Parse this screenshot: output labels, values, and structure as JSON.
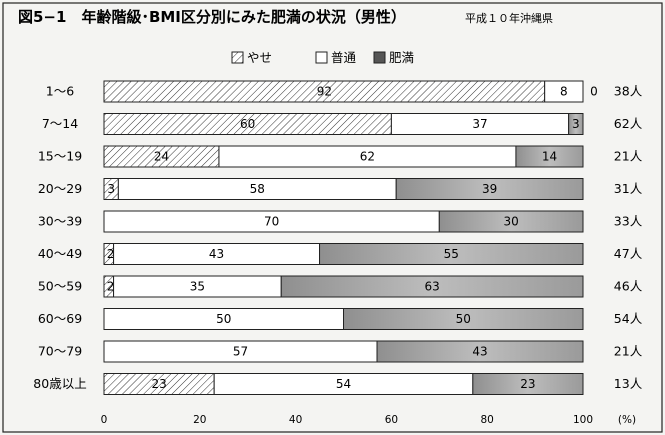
{
  "chart_data": {
    "type": "bar",
    "orientation": "horizontal",
    "stacked": true,
    "title": "図5−1　年齢階級･BMI区分別にみた肥満の状況（男性）",
    "subtitle": "平成１０年沖縄県",
    "categories": [
      "1～6",
      "7～14",
      "15～19",
      "20～29",
      "30～39",
      "40～49",
      "50～59",
      "60～69",
      "70～79",
      "80歳以上"
    ],
    "series": [
      {
        "name": "やせ",
        "values": [
          92,
          60,
          24,
          3,
          0,
          2,
          2,
          0,
          0,
          23
        ]
      },
      {
        "name": "普通",
        "values": [
          8,
          37,
          62,
          58,
          70,
          43,
          35,
          50,
          57,
          54
        ]
      },
      {
        "name": "肥満",
        "values": [
          0,
          3,
          14,
          39,
          30,
          55,
          63,
          50,
          43,
          23
        ]
      }
    ],
    "totals": [
      "38人",
      "62人",
      "21人",
      "31人",
      "33人",
      "47人",
      "46人",
      "54人",
      "21人",
      "13人"
    ],
    "x_ticks": [
      "0",
      "20",
      "40",
      "60",
      "80",
      "100"
    ],
    "x_unit": "(%)",
    "xlim": [
      0,
      100
    ],
    "legend_position": "top-center",
    "grid": false,
    "colors": {
      "yase": "#ffffff",
      "futsu": "#ffffff",
      "himan": "#a9a9a9",
      "stroke": "#222222"
    }
  }
}
